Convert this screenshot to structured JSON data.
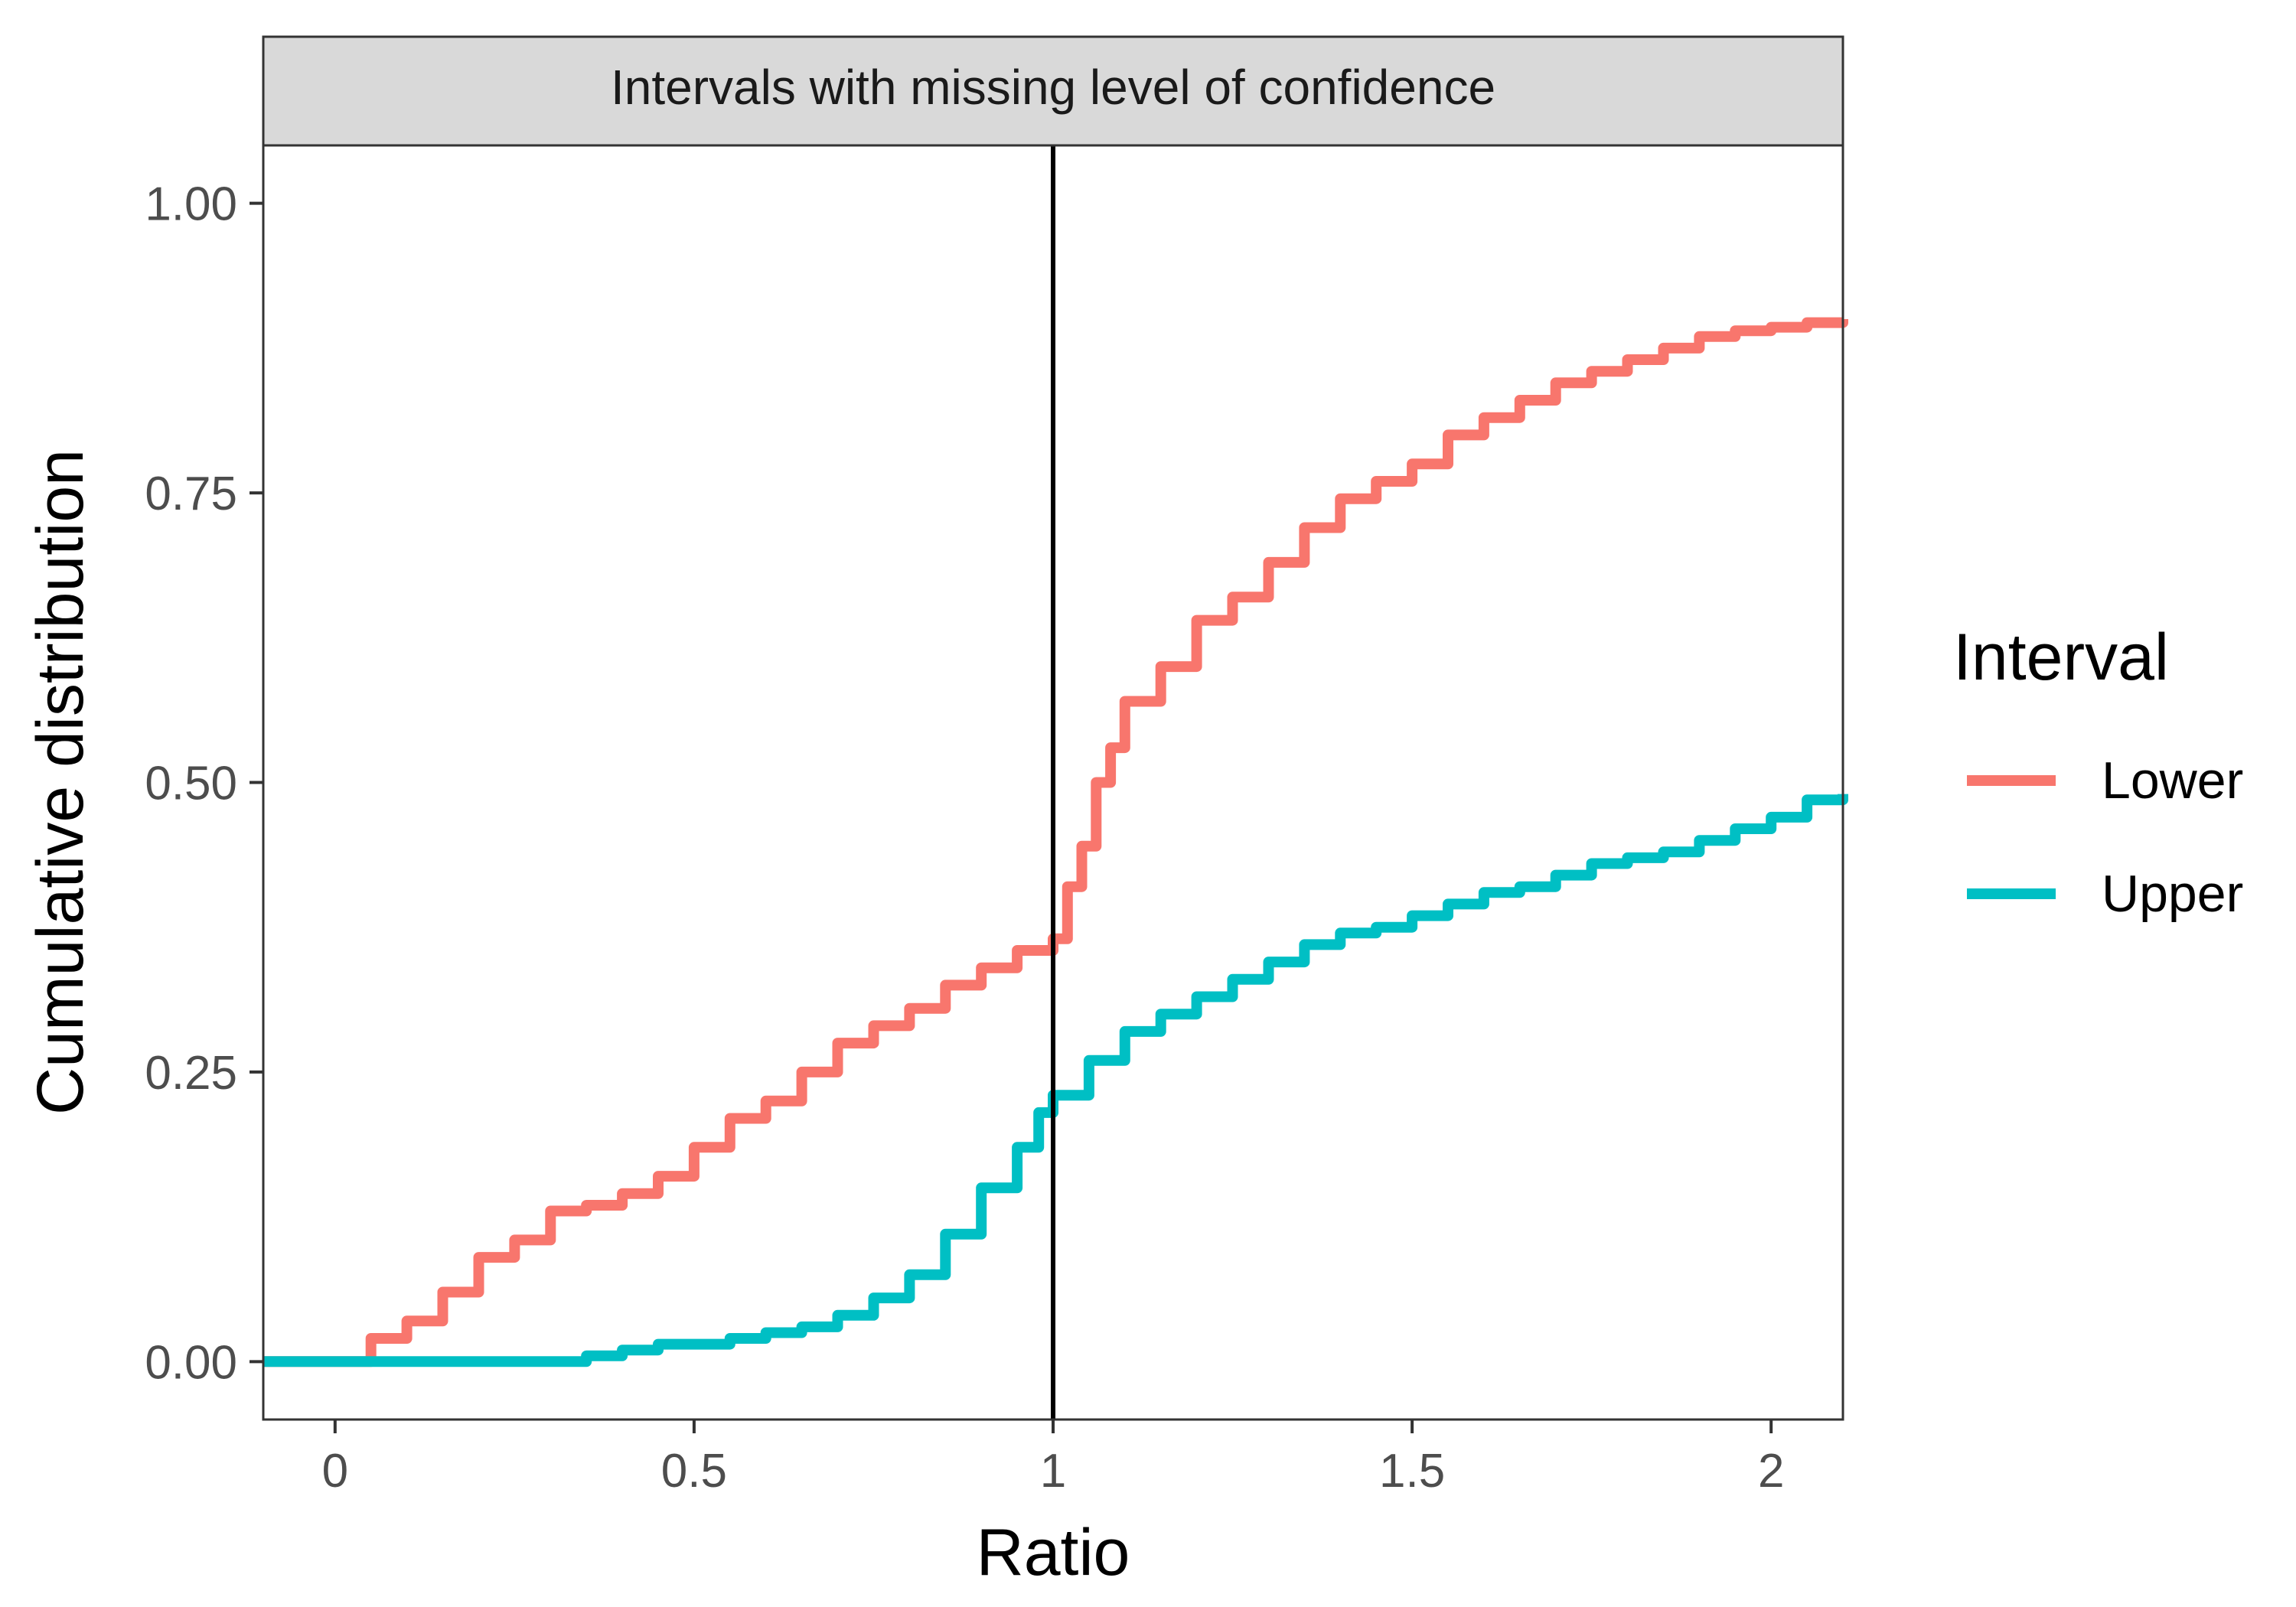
{
  "chart_data": {
    "type": "line",
    "panel_title": "Intervals with missing level of confidence",
    "xlabel": "Ratio",
    "ylabel": "Cumulative distribution",
    "xlim": [
      -0.1,
      2.1
    ],
    "ylim": [
      -0.05,
      1.05
    ],
    "x_ticks": [
      0,
      0.5,
      1,
      1.5,
      2
    ],
    "x_tick_labels": [
      "0",
      "0.5",
      "1",
      "1.5",
      "2"
    ],
    "y_ticks": [
      0,
      0.25,
      0.5,
      0.75,
      1
    ],
    "y_tick_labels": [
      "0.00",
      "0.25",
      "0.50",
      "0.75",
      "1.00"
    ],
    "vline_x": 1,
    "grid": false,
    "legend": {
      "title": "Interval",
      "position": "right"
    },
    "series": [
      {
        "name": "Lower",
        "color": "#F8766D",
        "x": [
          -0.1,
          0.0,
          0.05,
          0.1,
          0.15,
          0.2,
          0.25,
          0.3,
          0.35,
          0.4,
          0.45,
          0.5,
          0.55,
          0.6,
          0.65,
          0.7,
          0.75,
          0.8,
          0.85,
          0.9,
          0.95,
          1.0,
          1.02,
          1.04,
          1.06,
          1.08,
          1.1,
          1.15,
          1.2,
          1.25,
          1.3,
          1.35,
          1.4,
          1.45,
          1.5,
          1.55,
          1.6,
          1.65,
          1.7,
          1.75,
          1.8,
          1.85,
          1.9,
          1.95,
          2.0,
          2.05,
          2.1
        ],
        "y": [
          0.0,
          0.0,
          0.02,
          0.035,
          0.06,
          0.09,
          0.105,
          0.13,
          0.135,
          0.145,
          0.16,
          0.185,
          0.21,
          0.225,
          0.25,
          0.275,
          0.29,
          0.305,
          0.325,
          0.34,
          0.355,
          0.365,
          0.41,
          0.445,
          0.5,
          0.53,
          0.57,
          0.6,
          0.64,
          0.66,
          0.69,
          0.72,
          0.745,
          0.76,
          0.775,
          0.8,
          0.815,
          0.83,
          0.845,
          0.855,
          0.865,
          0.875,
          0.885,
          0.89,
          0.893,
          0.897,
          0.9
        ]
      },
      {
        "name": "Upper",
        "color": "#00BFC4",
        "x": [
          -0.1,
          0.0,
          0.1,
          0.2,
          0.3,
          0.35,
          0.4,
          0.45,
          0.5,
          0.55,
          0.6,
          0.65,
          0.7,
          0.75,
          0.8,
          0.85,
          0.9,
          0.95,
          0.98,
          1.0,
          1.05,
          1.1,
          1.15,
          1.2,
          1.25,
          1.3,
          1.35,
          1.4,
          1.45,
          1.5,
          1.55,
          1.6,
          1.65,
          1.7,
          1.75,
          1.8,
          1.85,
          1.9,
          1.95,
          2.0,
          2.05,
          2.1
        ],
        "y": [
          0.0,
          0.0,
          0.0,
          0.0,
          0.0,
          0.005,
          0.01,
          0.015,
          0.015,
          0.02,
          0.025,
          0.03,
          0.04,
          0.055,
          0.075,
          0.11,
          0.15,
          0.185,
          0.215,
          0.23,
          0.26,
          0.285,
          0.3,
          0.315,
          0.33,
          0.345,
          0.36,
          0.37,
          0.375,
          0.385,
          0.395,
          0.405,
          0.41,
          0.42,
          0.43,
          0.435,
          0.44,
          0.45,
          0.46,
          0.47,
          0.485,
          0.49
        ]
      }
    ]
  }
}
